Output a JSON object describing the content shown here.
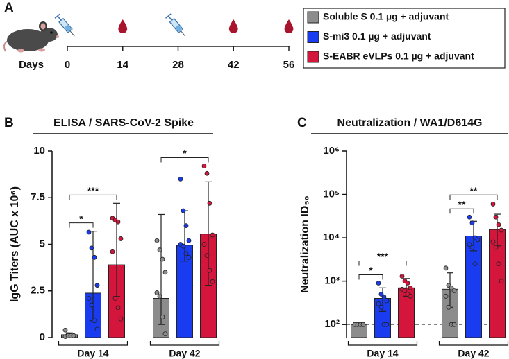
{
  "timeline": {
    "panel": "A",
    "axis_label": "Days",
    "days": [
      0,
      14,
      28,
      42,
      56
    ],
    "injections": [
      0,
      28
    ],
    "blood_draws": [
      14,
      42,
      56
    ]
  },
  "chart_data": [
    {
      "type": "bar",
      "panel": "B",
      "title": "ELISA / SARS-CoV-2 Spike",
      "y_label": "IgG Titers (AUC x 10⁶)",
      "categories": [
        "Day 14",
        "Day 42"
      ],
      "ylim": [
        0,
        10
      ],
      "yticks": [
        0,
        2.5,
        5,
        7.5,
        10
      ],
      "series": [
        {
          "name": "Soluble S 0.1 µg + adjuvant",
          "color": "#8c8c8c",
          "values": [
            0.15,
            2.1
          ],
          "error_low": [
            0.05,
            0.7
          ],
          "error_high": [
            0.25,
            6.6
          ],
          "points": [
            [
              0.4,
              0.15,
              0.1,
              0.1,
              0.05,
              0.1,
              0.1,
              0.1
            ],
            [
              5.2,
              4.7,
              4.2,
              3.5,
              2.4,
              2.2,
              1.1,
              0.2
            ]
          ]
        },
        {
          "name": "S-mi3 0.1 µg + adjuvant",
          "color": "#1a3cf0",
          "values": [
            2.38,
            4.95
          ],
          "error_low": [
            0.9,
            4.1
          ],
          "error_high": [
            5.7,
            6.8
          ],
          "points": [
            [
              5.65,
              4.8,
              4.3,
              2.8,
              2.1,
              1.75,
              0.9,
              0.45
            ],
            [
              8.5,
              6.8,
              6.0,
              5.2,
              5.0,
              4.9,
              4.5,
              4.3
            ]
          ]
        },
        {
          "name": "S-EABR eVLPs 0.1 µg + adjuvant",
          "color": "#d4163c",
          "values": [
            3.9,
            5.55
          ],
          "error_low": [
            2.2,
            2.8
          ],
          "error_high": [
            7.2,
            8.35
          ],
          "points": [
            [
              6.4,
              6.3,
              6.2,
              5.3,
              4.6,
              2.1,
              1.6,
              1.0
            ],
            [
              9.2,
              8.8,
              7.2,
              5.5,
              5.0,
              4.4,
              3.6,
              3.0
            ]
          ]
        }
      ],
      "annotations": [
        {
          "text": "*",
          "category": 0,
          "between": [
            0,
            1
          ]
        },
        {
          "text": "***",
          "category": 0,
          "between": [
            0,
            2
          ]
        },
        {
          "text": "*",
          "category": 1,
          "between": [
            0,
            2
          ]
        }
      ]
    },
    {
      "type": "bar",
      "panel": "C",
      "title": "Neutralization / WA1/D614G",
      "y_label": "Neutralization ID₅₀",
      "log_scale": true,
      "categories": [
        "Day 14",
        "Day 42"
      ],
      "ylim": [
        50,
        1000000
      ],
      "yticks": [
        {
          "value": 100,
          "label": "10²"
        },
        {
          "value": 1000,
          "label": "10³"
        },
        {
          "value": 10000,
          "label": "10⁴"
        },
        {
          "value": 100000,
          "label": "10⁵"
        },
        {
          "value": 1000000,
          "label": "10⁶"
        }
      ],
      "reference_line": 100,
      "series": [
        {
          "color": "#8c8c8c",
          "values": [
            100,
            650
          ],
          "error_low": [
            100,
            250
          ],
          "error_high": [
            100,
            1550
          ],
          "points": [
            [
              100,
              100,
              100,
              100,
              100,
              100,
              100,
              100
            ],
            [
              2000,
              800,
              700,
              600,
              450,
              250,
              100,
              100
            ]
          ]
        },
        {
          "color": "#1a3cf0",
          "values": [
            400,
            11000
          ],
          "error_low": [
            200,
            5000
          ],
          "error_high": [
            700,
            24000
          ],
          "points": [
            [
              900,
              500,
              430,
              350,
              300,
              250,
              100,
              100
            ],
            [
              30000,
              22000,
              10000,
              9000,
              7000,
              6000,
              2500
            ]
          ]
        },
        {
          "color": "#d4163c",
          "values": [
            700,
            15500
          ],
          "error_low": [
            450,
            6500
          ],
          "error_high": [
            1150,
            35000
          ],
          "points": [
            [
              1300,
              1000,
              900,
              700,
              650,
              600,
              500,
              450
            ],
            [
              60000,
              30000,
              20000,
              15000,
              8000,
              6000,
              2500,
              1000
            ]
          ]
        }
      ],
      "annotations": [
        {
          "text": "*",
          "category": 0,
          "between": [
            0,
            1
          ]
        },
        {
          "text": "***",
          "category": 0,
          "between": [
            0,
            2
          ]
        },
        {
          "text": "**",
          "category": 1,
          "between": [
            0,
            1
          ]
        },
        {
          "text": "**",
          "category": 1,
          "between": [
            0,
            2
          ]
        }
      ]
    }
  ]
}
